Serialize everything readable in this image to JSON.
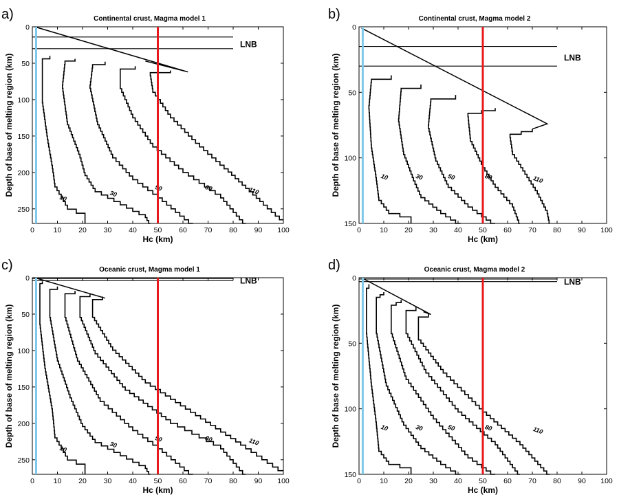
{
  "chart_data": [
    {
      "type": "line",
      "panel_label": "a)",
      "title": "Continental crust, Magma model 1",
      "xlabel": "Hc (km)",
      "ylabel": "Depth of base of melting region (km)",
      "xlim": [
        0,
        100
      ],
      "ylim": [
        0,
        270
      ],
      "y_inverted": true,
      "xticks": [
        "0",
        "10",
        "20",
        "30",
        "40",
        "50",
        "60",
        "70",
        "80",
        "90",
        "100"
      ],
      "yticks": [
        "0",
        "50",
        "100",
        "150",
        "200",
        "250"
      ],
      "lnb_label": "LNB",
      "lnb_lines": [
        {
          "y": 14,
          "x": [
            0,
            80
          ]
        },
        {
          "y": 30,
          "x": [
            0,
            80
          ]
        }
      ],
      "envelope": {
        "points": [
          [
            1,
            0
          ],
          [
            62,
            62
          ],
          [
            45,
            47
          ]
        ]
      },
      "vlines": [
        {
          "x": 1.5,
          "color": "#7ec8ea"
        },
        {
          "x": 50,
          "color": "#e8191c"
        }
      ],
      "series": [
        {
          "label": "10",
          "label_at": [
            12,
            238
          ],
          "points": [
            [
              7,
              40
            ],
            [
              4,
              44
            ],
            [
              4,
              100
            ],
            [
              6,
              150
            ],
            [
              8,
              190
            ],
            [
              9,
              215
            ],
            [
              14,
              245
            ],
            [
              21,
              256
            ],
            [
              21,
              270
            ]
          ]
        },
        {
          "label": "30",
          "label_at": [
            32,
            232
          ],
          "points": [
            [
              17,
              44
            ],
            [
              13,
              47
            ],
            [
              12,
              80
            ],
            [
              14,
              130
            ],
            [
              19,
              175
            ],
            [
              21,
              200
            ],
            [
              25,
              222
            ],
            [
              35,
              240
            ],
            [
              45,
              258
            ],
            [
              47,
              270
            ]
          ]
        },
        {
          "label": "50",
          "label_at": [
            50,
            224
          ],
          "points": [
            [
              29,
              48
            ],
            [
              24,
              52
            ],
            [
              23,
              80
            ],
            [
              26,
              130
            ],
            [
              32,
              175
            ],
            [
              40,
              205
            ],
            [
              50,
              230
            ],
            [
              64,
              270
            ]
          ]
        },
        {
          "label": "80",
          "label_at": [
            70,
            224
          ],
          "points": [
            [
              41,
              54
            ],
            [
              35,
              58
            ],
            [
              35,
              80
            ],
            [
              40,
              120
            ],
            [
              48,
              160
            ],
            [
              60,
              195
            ],
            [
              75,
              230
            ],
            [
              85,
              270
            ]
          ]
        },
        {
          "label": "110",
          "label_at": [
            88,
            228
          ],
          "points": [
            [
              55,
              60
            ],
            [
              47,
              63
            ],
            [
              48,
              85
            ],
            [
              55,
              120
            ],
            [
              65,
              155
            ],
            [
              78,
              195
            ],
            [
              92,
              240
            ],
            [
              100,
              265
            ]
          ]
        }
      ]
    },
    {
      "type": "line",
      "panel_label": "b)",
      "title": "Continental crust, Magma model 2",
      "xlabel": "Hc (km)",
      "ylabel": "Depth of base of melting region (km)",
      "xlim": [
        0,
        100
      ],
      "ylim": [
        0,
        150
      ],
      "y_inverted": true,
      "xticks": [
        "0",
        "10",
        "20",
        "30",
        "40",
        "50",
        "60",
        "70",
        "80",
        "90",
        "100"
      ],
      "yticks": [
        "0",
        "50",
        "100",
        "150"
      ],
      "lnb_label": "LNB",
      "lnb_lines": [
        {
          "y": 15,
          "x": [
            0,
            80
          ]
        },
        {
          "y": 30,
          "x": [
            0,
            80
          ]
        }
      ],
      "envelope": {
        "points": [
          [
            1,
            1
          ],
          [
            76,
            74
          ],
          [
            70,
            78
          ]
        ]
      },
      "vlines": [
        {
          "x": 1.5,
          "color": "#7ec8ea"
        },
        {
          "x": 50,
          "color": "#e8191c"
        }
      ],
      "series": [
        {
          "label": "10",
          "label_at": [
            10,
            116
          ],
          "points": [
            [
              13,
              37
            ],
            [
              5,
              40
            ],
            [
              4,
              60
            ],
            [
              5,
              90
            ],
            [
              7,
              115
            ],
            [
              8,
              130
            ],
            [
              12,
              140
            ],
            [
              21,
              145
            ],
            [
              21,
              150
            ]
          ]
        },
        {
          "label": "30",
          "label_at": [
            24,
            116
          ],
          "points": [
            [
              25,
              44
            ],
            [
              17,
              47
            ],
            [
              16,
              70
            ],
            [
              18,
              95
            ],
            [
              22,
              115
            ],
            [
              25,
              128
            ],
            [
              33,
              140
            ],
            [
              41,
              150
            ]
          ]
        },
        {
          "label": "50",
          "label_at": [
            37,
            116
          ],
          "points": [
            [
              39,
              52
            ],
            [
              29,
              55
            ],
            [
              28,
              75
            ],
            [
              31,
              100
            ],
            [
              36,
              120
            ],
            [
              44,
              135
            ],
            [
              55,
              150
            ]
          ]
        },
        {
          "label": "80",
          "label_at": [
            52,
            116
          ],
          "points": [
            [
              55,
              62
            ],
            [
              44,
              66
            ],
            [
              45,
              85
            ],
            [
              50,
              105
            ],
            [
              55,
              120
            ],
            [
              62,
              135
            ],
            [
              65,
              150
            ]
          ]
        },
        {
          "label": "110",
          "label_at": [
            72,
            118
          ],
          "points": [
            [
              70,
              78
            ],
            [
              61,
              82
            ],
            [
              62,
              95
            ],
            [
              67,
              110
            ],
            [
              72,
              125
            ],
            [
              76,
              140
            ],
            [
              77,
              150
            ]
          ]
        }
      ]
    },
    {
      "type": "line",
      "panel_label": "c)",
      "title": "Oceanic crust, Magma model 1",
      "xlabel": "Hc (km)",
      "ylabel": "Depth of base of melting region (km)",
      "xlim": [
        0,
        100
      ],
      "ylim": [
        0,
        270
      ],
      "y_inverted": true,
      "xticks": [
        "0",
        "10",
        "20",
        "30",
        "40",
        "50",
        "60",
        "70",
        "80",
        "90",
        "100"
      ],
      "yticks": [
        "0",
        "50",
        "100",
        "150",
        "200",
        "250"
      ],
      "lnb_label": "LNB",
      "lnb_lines": [
        {
          "y": 1,
          "x": [
            0,
            80
          ]
        },
        {
          "y": 4,
          "x": [
            0,
            80
          ]
        }
      ],
      "envelope": {
        "points": [
          [
            1,
            0
          ],
          [
            29,
            28
          ],
          [
            26,
            25
          ]
        ]
      },
      "vlines": [
        {
          "x": 1.5,
          "color": "#7ec8ea"
        },
        {
          "x": 50,
          "color": "#e8191c"
        }
      ],
      "series": [
        {
          "label": "10",
          "label_at": [
            12,
            238
          ],
          "points": [
            [
              4,
              5
            ],
            [
              3,
              8
            ],
            [
              3,
              60
            ],
            [
              5,
              120
            ],
            [
              8,
              180
            ],
            [
              9,
              215
            ],
            [
              14,
              245
            ],
            [
              21,
              256
            ],
            [
              21,
              270
            ]
          ]
        },
        {
          "label": "30",
          "label_at": [
            32,
            232
          ],
          "points": [
            [
              10,
              12
            ],
            [
              7,
              16
            ],
            [
              7,
              50
            ],
            [
              10,
              110
            ],
            [
              15,
              160
            ],
            [
              20,
              200
            ],
            [
              25,
              222
            ],
            [
              35,
              240
            ],
            [
              45,
              258
            ],
            [
              47,
              270
            ]
          ]
        },
        {
          "label": "50",
          "label_at": [
            50,
            224
          ],
          "points": [
            [
              17,
              18
            ],
            [
              13,
              22
            ],
            [
              13,
              50
            ],
            [
              18,
              110
            ],
            [
              27,
              165
            ],
            [
              40,
              205
            ],
            [
              50,
              230
            ],
            [
              64,
              270
            ]
          ]
        },
        {
          "label": "80",
          "label_at": [
            70,
            224
          ],
          "points": [
            [
              23,
              22
            ],
            [
              19,
              26
            ],
            [
              19,
              50
            ],
            [
              25,
              100
            ],
            [
              37,
              150
            ],
            [
              55,
              195
            ],
            [
              75,
              230
            ],
            [
              85,
              270
            ]
          ]
        },
        {
          "label": "110",
          "label_at": [
            88,
            228
          ],
          "points": [
            [
              28,
              26
            ],
            [
              24,
              30
            ],
            [
              24,
              50
            ],
            [
              32,
              95
            ],
            [
              45,
              140
            ],
            [
              65,
              185
            ],
            [
              85,
              230
            ],
            [
              100,
              265
            ]
          ]
        }
      ]
    },
    {
      "type": "line",
      "panel_label": "d)",
      "title": "Oceanic crust, Magma model 2",
      "xlabel": "Hc (km)",
      "ylabel": "Depth of base of melting region (km)",
      "xlim": [
        0,
        100
      ],
      "ylim": [
        0,
        150
      ],
      "y_inverted": true,
      "xticks": [
        "0",
        "10",
        "20",
        "30",
        "40",
        "50",
        "60",
        "70",
        "80",
        "90",
        "100"
      ],
      "yticks": [
        "0",
        "50",
        "100",
        "150"
      ],
      "lnb_label": "LNB",
      "lnb_lines": [
        {
          "y": 1,
          "x": [
            0,
            80
          ]
        },
        {
          "y": 3,
          "x": [
            0,
            80
          ]
        }
      ],
      "envelope": {
        "points": [
          [
            1,
            0
          ],
          [
            29,
            28
          ],
          [
            26,
            26
          ]
        ]
      },
      "vlines": [
        {
          "x": 1.5,
          "color": "#7ec8ea"
        },
        {
          "x": 50,
          "color": "#e8191c"
        }
      ],
      "series": [
        {
          "label": "10",
          "label_at": [
            10,
            116
          ],
          "points": [
            [
              4,
              5
            ],
            [
              3,
              8
            ],
            [
              3,
              40
            ],
            [
              5,
              80
            ],
            [
              7,
              110
            ],
            [
              8,
              130
            ],
            [
              12,
              140
            ],
            [
              21,
              145
            ],
            [
              21,
              150
            ]
          ]
        },
        {
          "label": "30",
          "label_at": [
            24,
            116
          ],
          "points": [
            [
              10,
              11
            ],
            [
              7,
              15
            ],
            [
              7,
              40
            ],
            [
              11,
              80
            ],
            [
              18,
              110
            ],
            [
              25,
              128
            ],
            [
              33,
              140
            ],
            [
              41,
              150
            ]
          ]
        },
        {
          "label": "50",
          "label_at": [
            37,
            116
          ],
          "points": [
            [
              17,
              17
            ],
            [
              13,
              21
            ],
            [
              13,
              40
            ],
            [
              19,
              75
            ],
            [
              30,
              105
            ],
            [
              44,
              135
            ],
            [
              55,
              150
            ]
          ]
        },
        {
          "label": "80",
          "label_at": [
            52,
            116
          ],
          "points": [
            [
              23,
              22
            ],
            [
              19,
              25
            ],
            [
              19,
              40
            ],
            [
              27,
              70
            ],
            [
              40,
              100
            ],
            [
              55,
              125
            ],
            [
              65,
              150
            ]
          ]
        },
        {
          "label": "110",
          "label_at": [
            72,
            118
          ],
          "points": [
            [
              28,
              27
            ],
            [
              24,
              30
            ],
            [
              24,
              45
            ],
            [
              34,
              70
            ],
            [
              50,
              100
            ],
            [
              65,
              125
            ],
            [
              77,
              150
            ]
          ]
        }
      ]
    }
  ]
}
